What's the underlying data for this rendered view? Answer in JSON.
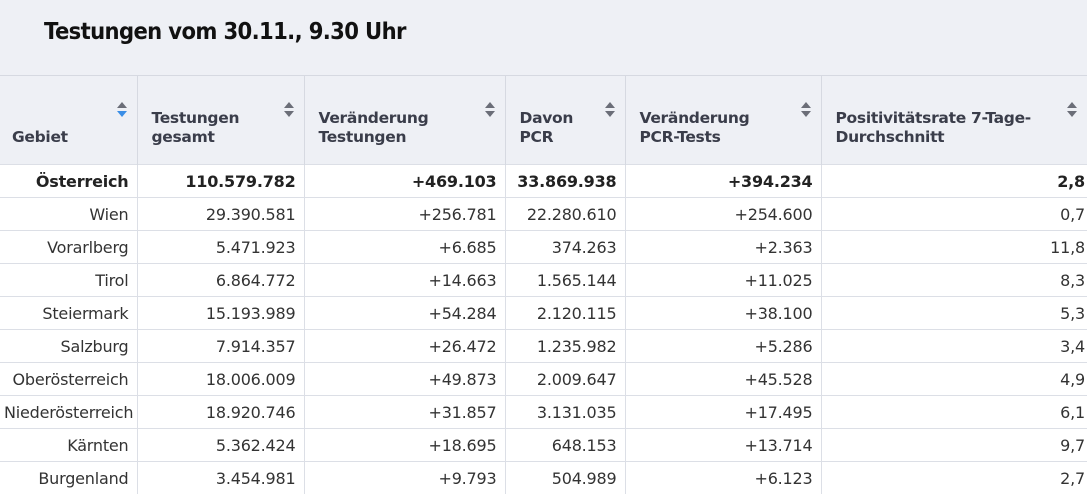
{
  "title": "Testungen vom 30.11., 9.30 Uhr",
  "columns": [
    {
      "label": "Gebiet",
      "sort": "desc"
    },
    {
      "label": "Testungen gesamt",
      "sort": "none"
    },
    {
      "label": "Veränderung Testungen",
      "sort": "none"
    },
    {
      "label": "Davon PCR",
      "sort": "none"
    },
    {
      "label": "Veränderung PCR-Tests",
      "sort": "none"
    },
    {
      "label": "Positivitätsrate 7-Tage-Durchschnitt",
      "sort": "none"
    }
  ],
  "rows": [
    [
      "Österreich",
      "110.579.782",
      "+469.103",
      "33.869.938",
      "+394.234",
      "2,8"
    ],
    [
      "Wien",
      "29.390.581",
      "+256.781",
      "22.280.610",
      "+254.600",
      "0,7"
    ],
    [
      "Vorarlberg",
      "5.471.923",
      "+6.685",
      "374.263",
      "+2.363",
      "11,8"
    ],
    [
      "Tirol",
      "6.864.772",
      "+14.663",
      "1.565.144",
      "+11.025",
      "8,3"
    ],
    [
      "Steiermark",
      "15.193.989",
      "+54.284",
      "2.120.115",
      "+38.100",
      "5,3"
    ],
    [
      "Salzburg",
      "7.914.357",
      "+26.472",
      "1.235.982",
      "+5.286",
      "3,4"
    ],
    [
      "Oberösterreich",
      "18.006.009",
      "+49.873",
      "2.009.647",
      "+45.528",
      "4,9"
    ],
    [
      "Niederösterreich",
      "18.920.746",
      "+31.857",
      "3.131.035",
      "+17.495",
      "6,1"
    ],
    [
      "Kärnten",
      "5.362.424",
      "+18.695",
      "648.153",
      "+13.714",
      "9,7"
    ],
    [
      "Burgenland",
      "3.454.981",
      "+9.793",
      "504.989",
      "+6.123",
      "2,7"
    ]
  ],
  "colors": {
    "header_bg": "#eef0f5",
    "sort_active": "#3a8ee6",
    "border": "#dcdfe6"
  }
}
